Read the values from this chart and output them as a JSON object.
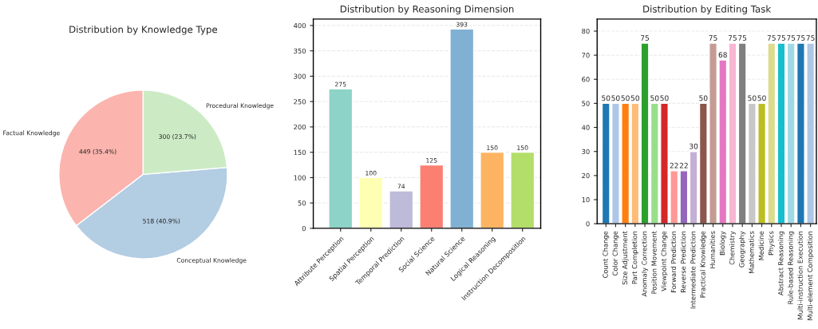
{
  "chart_data": [
    {
      "type": "pie",
      "title": "Distribution by Knowledge Type",
      "categories": [
        "Factual Knowledge",
        "Conceptual Knowledge",
        "Procedural Knowledge"
      ],
      "values": [
        449,
        518,
        300
      ],
      "colors": [
        "#fbb4ae",
        "#b3cde3",
        "#ccebc5"
      ],
      "value_labels": [
        "449 (35.4%)",
        "518 (40.9%)",
        "300 (23.7%)"
      ]
    },
    {
      "type": "bar",
      "title": "Distribution by Reasoning Dimension",
      "categories": [
        "Attribute Perception",
        "Spatial Perception",
        "Temporal Prediction",
        "Social Science",
        "Natural Science",
        "Logical Reasoning",
        "Instruction Decomposition"
      ],
      "values": [
        275,
        100,
        74,
        125,
        393,
        150,
        150
      ],
      "colors": [
        "#8dd3c7",
        "#ffffb3",
        "#bebada",
        "#fb8072",
        "#80b1d3",
        "#fdb462",
        "#b3de69"
      ],
      "ylim": [
        0,
        412.65
      ],
      "yticks": [
        0,
        50,
        100,
        150,
        200,
        250,
        300,
        350,
        400
      ],
      "grid": "y",
      "data_labels": true
    },
    {
      "type": "bar",
      "title": "Distribution by Editing Task",
      "categories": [
        "Count Change",
        "Color Change",
        "Size Adjustment",
        "Part Completion",
        "Anomaly Correction",
        "Position Movement",
        "Viewpoint Change",
        "Forward Prediction",
        "Reverse Prediction",
        "Intermediate Prediction",
        "Practical Knowledge",
        "Humanities",
        "Biology",
        "Chemistry",
        "Geography",
        "Mathematics",
        "Medicine",
        "Physics",
        "Abstract Reasoning",
        "Rule-based Reasoning",
        "Multi-instruction Execution",
        "Multi-element Composition"
      ],
      "values": [
        50,
        50,
        50,
        50,
        75,
        50,
        50,
        22,
        22,
        30,
        50,
        75,
        68,
        75,
        75,
        50,
        50,
        75,
        75,
        75,
        75,
        75
      ],
      "colors": [
        "#1f77b4",
        "#aec7e8",
        "#ff7f0e",
        "#ffbb78",
        "#2ca02c",
        "#98df8a",
        "#d62728",
        "#ff9896",
        "#9467bd",
        "#c5b0d5",
        "#8c564b",
        "#c49c94",
        "#e377c2",
        "#f7b6d2",
        "#7f7f7f",
        "#c7c7c7",
        "#bcbd22",
        "#dbdb8d",
        "#17becf",
        "#9edae5",
        "#1f77b4",
        "#aec7e8"
      ],
      "ylim": [
        0,
        85
      ],
      "yticks": [
        0,
        10,
        20,
        30,
        40,
        50,
        60,
        70,
        80
      ],
      "grid": "y",
      "data_labels": true
    }
  ]
}
